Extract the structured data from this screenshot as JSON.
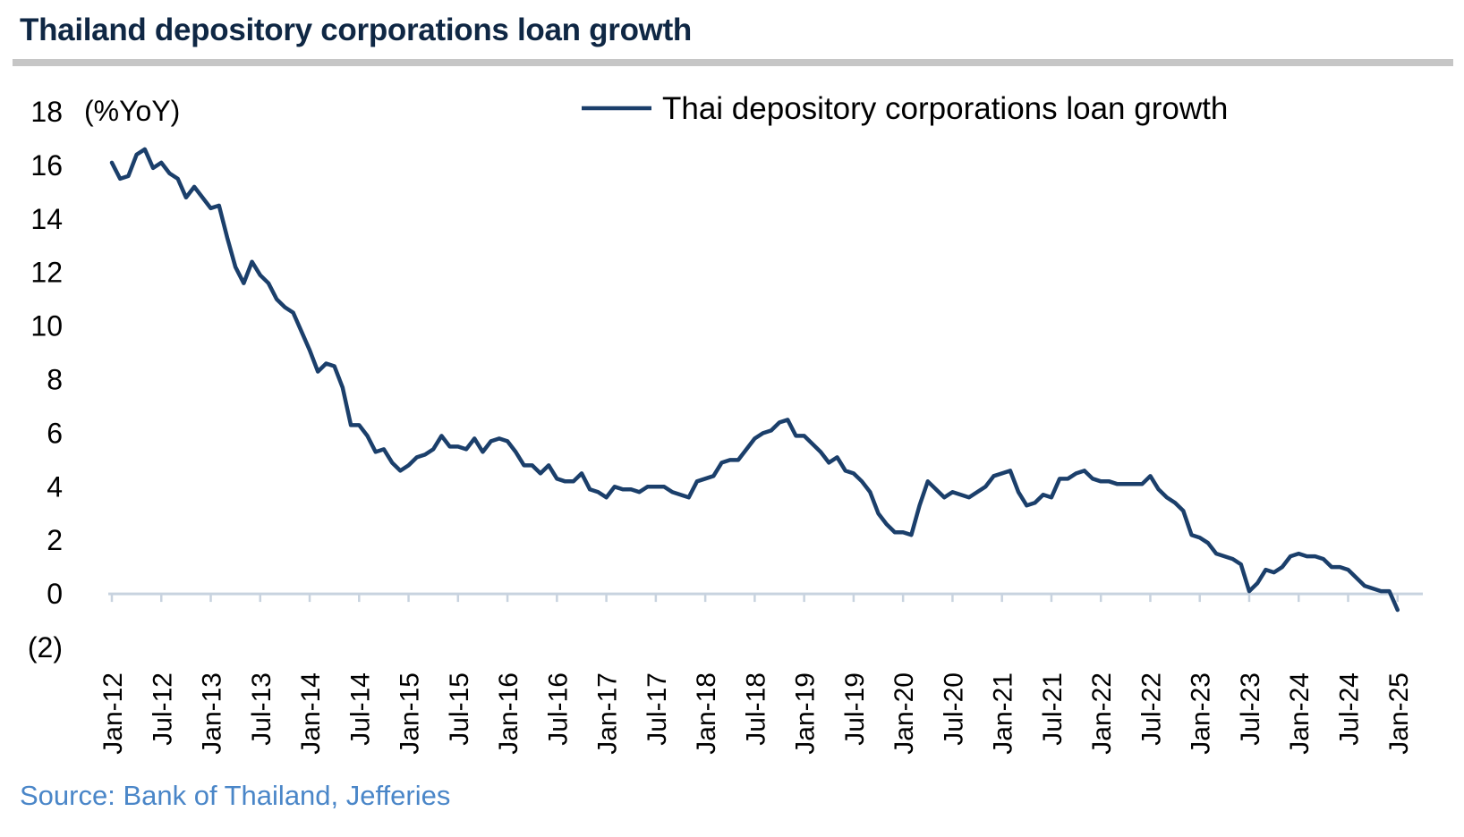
{
  "title": "Thailand depository corporations loan growth",
  "source": "Source: Bank of Thailand, Jefferies",
  "colors": {
    "line": "#1b3f6b",
    "axis": "#c8d3df",
    "title": "#0f2744",
    "source": "#4a86c8",
    "rule": "#c6c6c6"
  },
  "chart_data": {
    "type": "line",
    "ylabel": "(%YoY)",
    "ylim": [
      -2,
      18
    ],
    "ytick_values": [
      -2,
      0,
      2,
      4,
      6,
      8,
      10,
      12,
      14,
      16,
      18
    ],
    "ytick_labels": [
      "(2)",
      "0",
      "2",
      "4",
      "6",
      "8",
      "10",
      "12",
      "14",
      "16",
      "18"
    ],
    "xtick_labels": [
      "Jan-12",
      "Jul-12",
      "Jan-13",
      "Jul-13",
      "Jan-14",
      "Jul-14",
      "Jan-15",
      "Jul-15",
      "Jan-16",
      "Jul-16",
      "Jan-17",
      "Jul-17",
      "Jan-18",
      "Jul-18",
      "Jan-19",
      "Jul-19",
      "Jan-20",
      "Jul-20",
      "Jan-21",
      "Jul-21",
      "Jan-22",
      "Jul-22",
      "Jan-23",
      "Jul-23",
      "Jan-24",
      "Jul-24",
      "Jan-25"
    ],
    "legend": "top-right",
    "grid": false,
    "series": [
      {
        "name": "Thai depository corporations loan growth",
        "x_start": "Jan-12",
        "frequency": "monthly",
        "values": [
          16.1,
          15.5,
          15.6,
          16.4,
          16.6,
          15.9,
          16.1,
          15.7,
          15.5,
          14.8,
          15.2,
          14.8,
          14.4,
          14.5,
          13.3,
          12.2,
          11.6,
          12.4,
          11.9,
          11.6,
          11.0,
          10.7,
          10.5,
          9.8,
          9.1,
          8.3,
          8.6,
          8.5,
          7.7,
          6.3,
          6.3,
          5.9,
          5.3,
          5.4,
          4.9,
          4.6,
          4.8,
          5.1,
          5.2,
          5.4,
          5.9,
          5.5,
          5.5,
          5.4,
          5.8,
          5.3,
          5.7,
          5.8,
          5.7,
          5.3,
          4.8,
          4.8,
          4.5,
          4.8,
          4.3,
          4.2,
          4.2,
          4.5,
          3.9,
          3.8,
          3.6,
          4.0,
          3.9,
          3.9,
          3.8,
          4.0,
          4.0,
          4.0,
          3.8,
          3.7,
          3.6,
          4.2,
          4.3,
          4.4,
          4.9,
          5.0,
          5.0,
          5.4,
          5.8,
          6.0,
          6.1,
          6.4,
          6.5,
          5.9,
          5.9,
          5.6,
          5.3,
          4.9,
          5.1,
          4.6,
          4.5,
          4.2,
          3.8,
          3.0,
          2.6,
          2.3,
          2.3,
          2.2,
          3.3,
          4.2,
          3.9,
          3.6,
          3.8,
          3.7,
          3.6,
          3.8,
          4.0,
          4.4,
          4.5,
          4.6,
          3.8,
          3.3,
          3.4,
          3.7,
          3.6,
          4.3,
          4.3,
          4.5,
          4.6,
          4.3,
          4.2,
          4.2,
          4.1,
          4.1,
          4.1,
          4.1,
          4.4,
          3.9,
          3.6,
          3.4,
          3.1,
          2.2,
          2.1,
          1.9,
          1.5,
          1.4,
          1.3,
          1.1,
          0.1,
          0.4,
          0.9,
          0.8,
          1.0,
          1.4,
          1.5,
          1.4,
          1.4,
          1.3,
          1.0,
          1.0,
          0.9,
          0.6,
          0.3,
          0.2,
          0.1,
          0.1,
          -0.6
        ]
      }
    ]
  }
}
